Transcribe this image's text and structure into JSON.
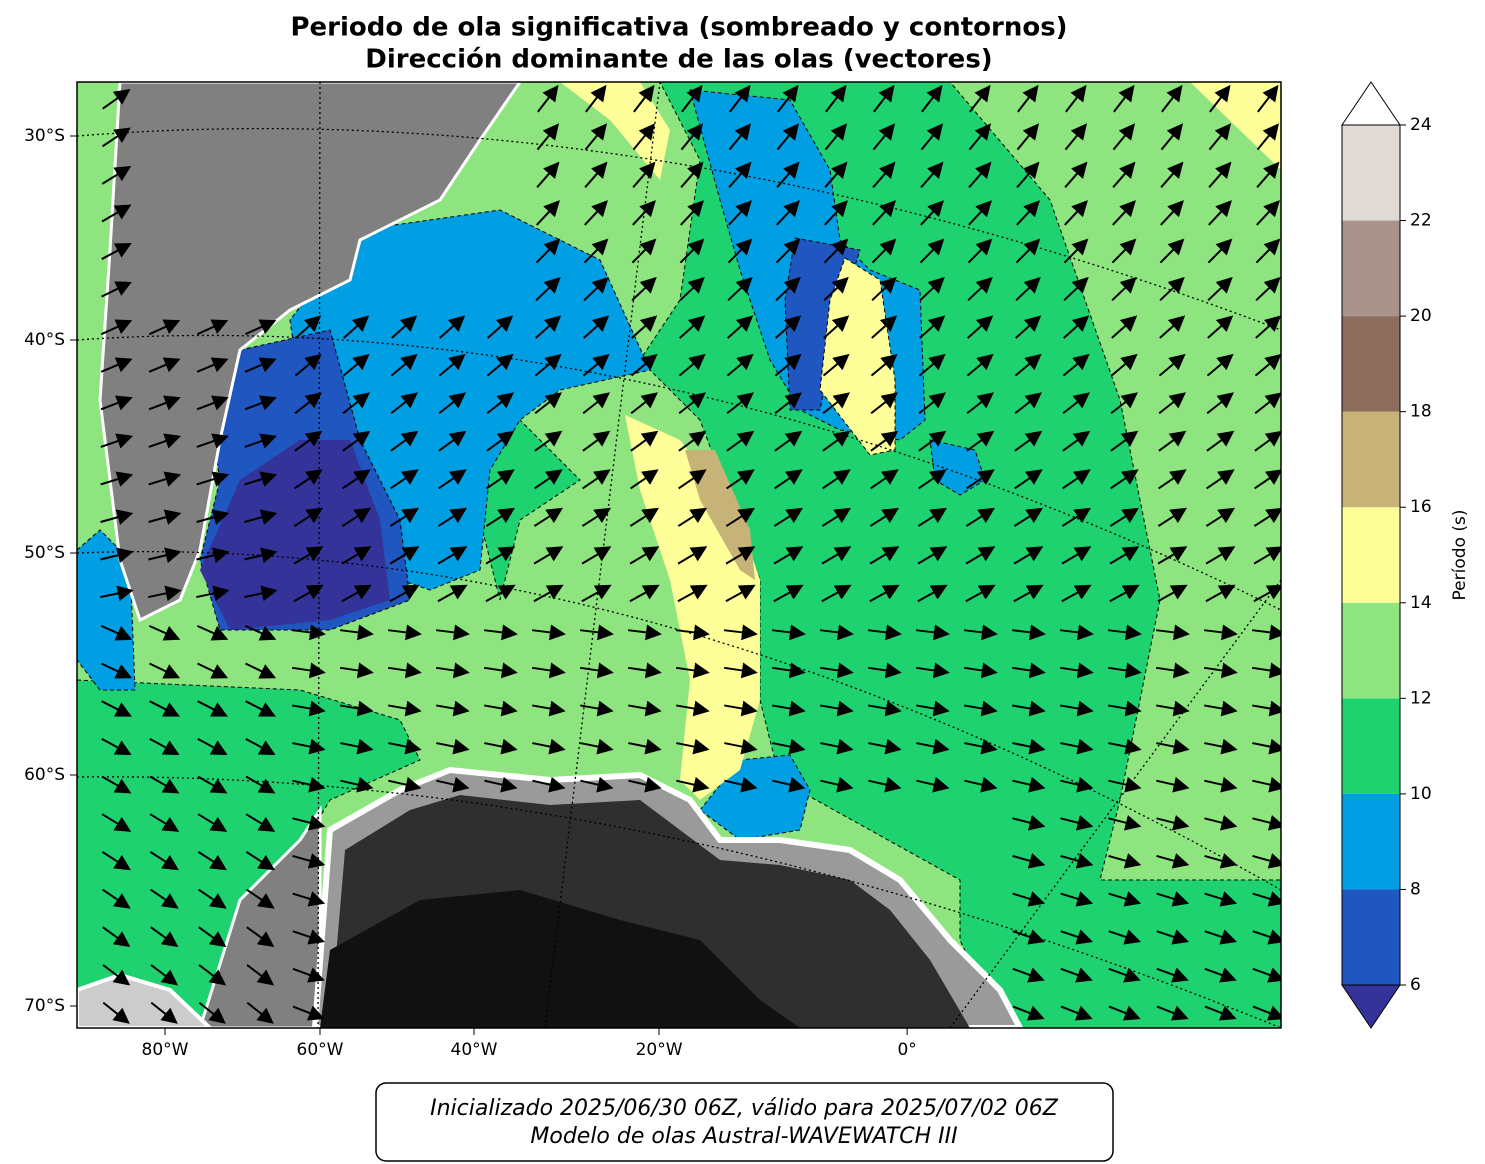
{
  "title": [
    "Periodo de ola significativa (sombreado y contornos)",
    "Dirección dominante de las olas (vectores)"
  ],
  "map": {
    "lat_labels": [
      {
        "value": -30,
        "label": "30°S"
      },
      {
        "value": -40,
        "label": "40°S"
      },
      {
        "value": -50,
        "label": "50°S"
      },
      {
        "value": -60,
        "label": "60°S"
      },
      {
        "value": -70,
        "label": "70°S"
      }
    ],
    "lon_labels": [
      {
        "value": -80,
        "label": "80°W"
      },
      {
        "value": -60,
        "label": "60°W"
      },
      {
        "value": -40,
        "label": "40°W"
      },
      {
        "value": -20,
        "label": "20°W"
      },
      {
        "value": 0,
        "label": "0°"
      }
    ]
  },
  "colorbar": {
    "label": "Período (s)",
    "ticks": [
      6,
      8,
      10,
      12,
      14,
      16,
      18,
      20,
      22,
      24
    ],
    "colors": [
      "#1f56bf",
      "#009fe3",
      "#1ed36f",
      "#8ee47e",
      "#ffff99",
      "#c7b277",
      "#8c6d5e",
      "#a9938b",
      "#e0dad7"
    ],
    "under_color": "#333399",
    "over_color": "#ffffff"
  },
  "footer": [
    "Inicializado 2025/06/30 06Z, válido para 2025/07/02 06Z",
    "Modelo de olas Austral-WAVEWATCH III"
  ]
}
